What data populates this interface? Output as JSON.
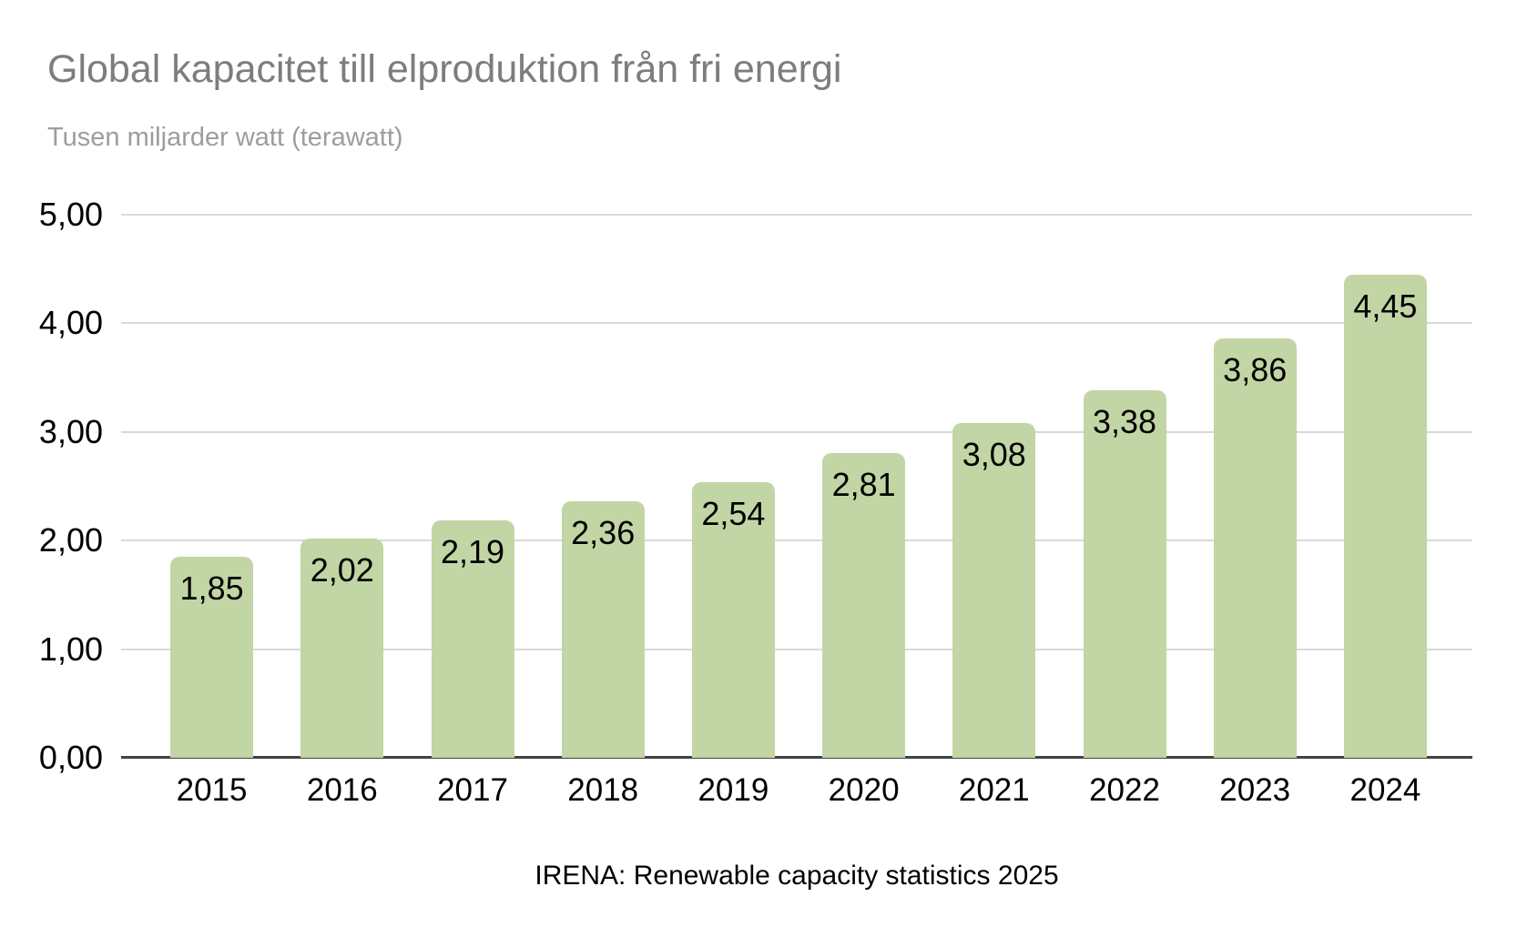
{
  "title": "Global kapacitet till elproduktion från fri energi",
  "subtitle": "Tusen miljarder watt (terawatt)",
  "source": "IRENA: Renewable capacity statistics 2025",
  "chart_data": {
    "type": "bar",
    "title": "Global kapacitet till elproduktion från fri energi",
    "subtitle": "Tusen miljarder watt (terawatt)",
    "categories": [
      "2015",
      "2016",
      "2017",
      "2018",
      "2019",
      "2020",
      "2021",
      "2022",
      "2023",
      "2024"
    ],
    "values": [
      1.85,
      2.02,
      2.19,
      2.36,
      2.54,
      2.81,
      3.08,
      3.38,
      3.86,
      4.45
    ],
    "value_labels": [
      "1,85",
      "2,02",
      "2,19",
      "2,36",
      "2,54",
      "2,81",
      "3,08",
      "3,38",
      "3,86",
      "4,45"
    ],
    "y_ticks": [
      {
        "value": 0,
        "label": "0,00"
      },
      {
        "value": 1,
        "label": "1,00"
      },
      {
        "value": 2,
        "label": "2,00"
      },
      {
        "value": 3,
        "label": "3,00"
      },
      {
        "value": 4,
        "label": "4,00"
      },
      {
        "value": 5,
        "label": "5,00"
      }
    ],
    "ylim": [
      0,
      5
    ],
    "xlabel": "",
    "ylabel": "Tusen miljarder watt (terawatt)",
    "grid": true,
    "legend_position": "none",
    "bar_color": "#c2d5a4",
    "gridline_color": "#d9d9d9",
    "axis_color": "#424242",
    "label_color": "#000000",
    "title_color": "#7d7d7d",
    "subtitle_color": "#9d9d9d",
    "source_text": "IRENA: Renewable capacity statistics 2025"
  }
}
